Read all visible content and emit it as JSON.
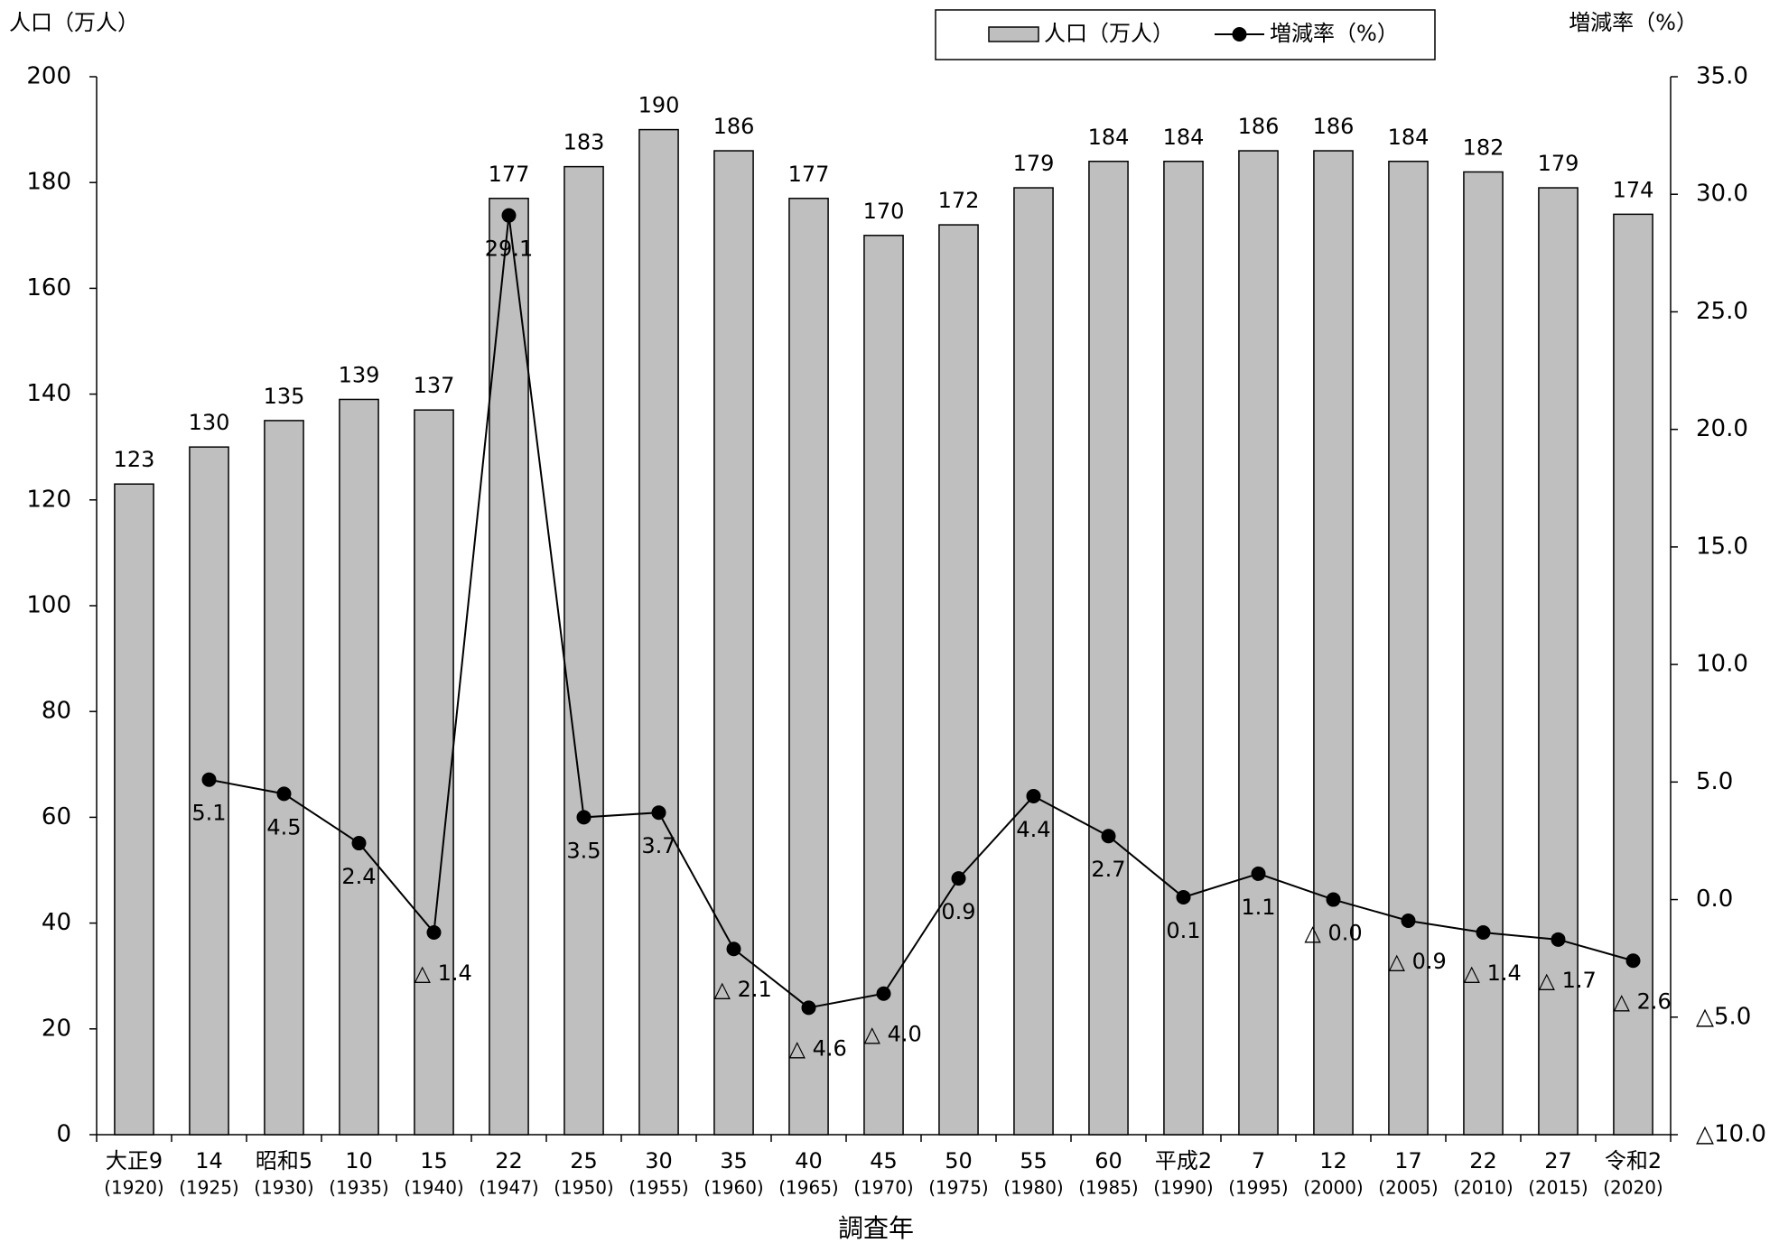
{
  "chart_data": {
    "type": "bar_line",
    "y_label": "人口（万人）",
    "y2_label": "増減率（%）",
    "x_label": "調査年",
    "categories": [
      [
        "大正9",
        "(1920)"
      ],
      [
        "14",
        "(1925)"
      ],
      [
        "昭和5",
        "(1930)"
      ],
      [
        "10",
        "(1935)"
      ],
      [
        "15",
        "(1940)"
      ],
      [
        "22",
        "(1947)"
      ],
      [
        "25",
        "(1950)"
      ],
      [
        "30",
        "(1955)"
      ],
      [
        "35",
        "(1960)"
      ],
      [
        "40",
        "(1965)"
      ],
      [
        "45",
        "(1970)"
      ],
      [
        "50",
        "(1975)"
      ],
      [
        "55",
        "(1980)"
      ],
      [
        "60",
        "(1985)"
      ],
      [
        "平成2",
        "(1990)"
      ],
      [
        "7",
        "(1995)"
      ],
      [
        "12",
        "(2000)"
      ],
      [
        "17",
        "(2005)"
      ],
      [
        "22",
        "(2010)"
      ],
      [
        "27",
        "(2015)"
      ],
      [
        "令和2",
        "(2020)"
      ]
    ],
    "series": [
      {
        "name": "人口（万人）",
        "type": "bar",
        "color": "#bfbfbf",
        "values": [
          123,
          130,
          135,
          139,
          137,
          177,
          183,
          190,
          186,
          177,
          170,
          172,
          179,
          184,
          184,
          186,
          186,
          184,
          182,
          179,
          174
        ]
      },
      {
        "name": "増減率（%）",
        "type": "line",
        "axis": "y2",
        "color": "#000000",
        "values": [
          null,
          5.1,
          4.5,
          2.4,
          -1.4,
          29.1,
          3.5,
          3.7,
          -2.1,
          -4.6,
          -4.0,
          0.9,
          4.4,
          2.7,
          0.1,
          1.1,
          0,
          -0.9,
          -1.4,
          -1.7,
          -2.6
        ],
        "value_labels": [
          null,
          "5.1",
          "4.5",
          "2.4",
          "△ 1.4",
          "29.1",
          "3.5",
          "3.7",
          "△ 2.1",
          "△ 4.6",
          "△ 4.0",
          "0.9",
          "4.4",
          "2.7",
          "0.1",
          "1.1",
          "△ 0.0",
          "△ 0.9",
          "△ 1.4",
          "△ 1.7",
          "△ 2.6"
        ]
      }
    ],
    "ylim": [
      0,
      200
    ],
    "yticks": [
      0,
      20,
      40,
      60,
      80,
      100,
      120,
      140,
      160,
      180,
      200
    ],
    "y2lim": [
      -10,
      35
    ],
    "y2ticks": [
      {
        "value": -10,
        "label": "△10.0"
      },
      {
        "value": -5,
        "label": "△5.0"
      },
      {
        "value": 0,
        "label": "0.0"
      },
      {
        "value": 5,
        "label": "5.0"
      },
      {
        "value": 10,
        "label": "10.0"
      },
      {
        "value": 15,
        "label": "15.0"
      },
      {
        "value": 20,
        "label": "20.0"
      },
      {
        "value": 25,
        "label": "25.0"
      },
      {
        "value": 30,
        "label": "30.0"
      },
      {
        "value": 35,
        "label": "35.0"
      }
    ],
    "grid": false,
    "legend": "top"
  }
}
